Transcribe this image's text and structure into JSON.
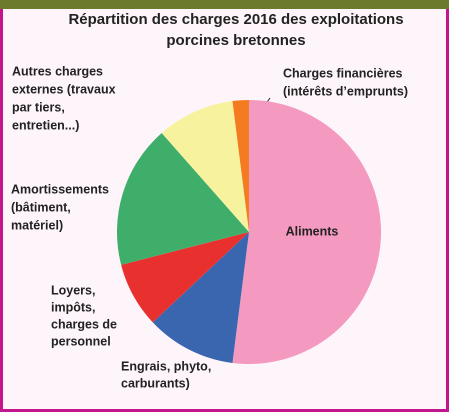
{
  "chart_data": {
    "type": "pie",
    "title": [
      "Répartition des charges 2016 des exploitations",
      "porcines bretonnes"
    ],
    "categories": [
      [
        "Aliments"
      ],
      [
        "Engrais, phyto,",
        "carburants)"
      ],
      [
        "Loyers,",
        "impôts,",
        "charges de",
        "personnel"
      ],
      [
        "Amortissements",
        "(bâtiment,",
        "matériel)"
      ],
      [
        "Autres charges",
        "externes (travaux",
        "par tiers,",
        "entretien...)"
      ],
      [
        "Charges financières",
        "(intérêts d’emprunts)"
      ]
    ],
    "values": [
      52,
      11,
      8,
      17.5,
      9.5,
      2
    ],
    "colors": [
      "#f49ac1",
      "#3a66b0",
      "#e8312f",
      "#3fae6a",
      "#f7f29e",
      "#f47b20"
    ]
  }
}
